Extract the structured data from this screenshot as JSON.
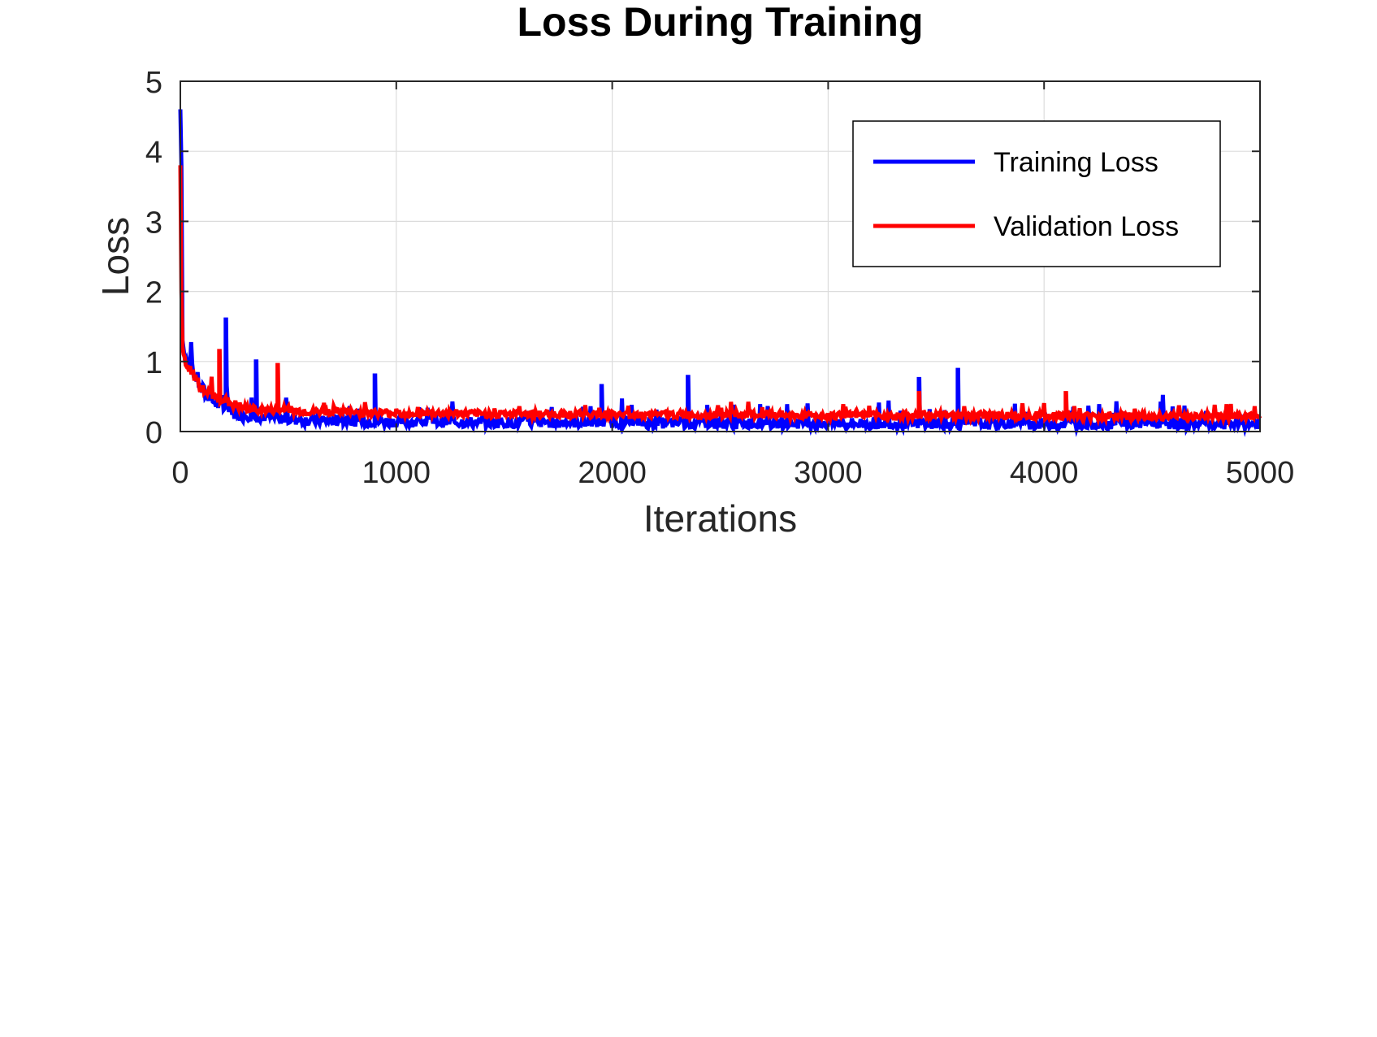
{
  "chart_data": {
    "type": "line",
    "title": "Loss During Training",
    "xlabel": "Iterations",
    "ylabel": "Loss",
    "xlim": [
      0,
      5000
    ],
    "ylim": [
      0,
      5
    ],
    "x_ticks": [
      0,
      1000,
      2000,
      3000,
      4000,
      5000
    ],
    "y_ticks": [
      0,
      1,
      2,
      3,
      4,
      5
    ],
    "grid": true,
    "legend_position": "top-right",
    "series": [
      {
        "name": "Training Loss",
        "color": "#0000ff",
        "x": [
          0,
          5,
          10,
          20,
          40,
          60,
          80,
          100,
          150,
          200,
          210,
          220,
          250,
          300,
          350,
          400,
          450,
          500,
          600,
          700,
          800,
          900,
          1000,
          1200,
          1400,
          1600,
          1800,
          1950,
          2000,
          2200,
          2350,
          2400,
          2600,
          2800,
          3000,
          3200,
          3400,
          3420,
          3500,
          3590,
          3600,
          3700,
          3800,
          4000,
          4200,
          4400,
          4600,
          4800,
          5000
        ],
        "values": [
          4.6,
          3.8,
          1.3,
          1.05,
          0.95,
          0.85,
          0.75,
          0.6,
          0.45,
          0.35,
          1.6,
          0.4,
          0.3,
          0.25,
          1.0,
          0.22,
          0.2,
          0.18,
          0.17,
          0.16,
          0.16,
          0.8,
          0.15,
          0.15,
          0.14,
          0.14,
          0.14,
          0.65,
          0.14,
          0.13,
          0.78,
          0.13,
          0.13,
          0.13,
          0.13,
          0.12,
          0.12,
          0.75,
          0.12,
          0.12,
          0.88,
          0.12,
          0.12,
          0.12,
          0.12,
          0.12,
          0.12,
          0.12,
          0.12
        ]
      },
      {
        "name": "Validation Loss",
        "color": "#ff0000",
        "x": [
          0,
          5,
          10,
          20,
          40,
          60,
          80,
          100,
          150,
          180,
          200,
          250,
          300,
          400,
          450,
          460,
          500,
          600,
          700,
          800,
          900,
          1000,
          1200,
          1400,
          1600,
          1800,
          2000,
          2200,
          2400,
          2600,
          2800,
          3000,
          3200,
          3400,
          3420,
          3600,
          3800,
          4000,
          4100,
          4200,
          4400,
          4600,
          4800,
          5000
        ],
        "values": [
          3.8,
          2.0,
          1.2,
          1.0,
          0.9,
          0.8,
          0.7,
          0.6,
          0.5,
          1.15,
          0.45,
          0.38,
          0.33,
          0.3,
          0.95,
          0.3,
          0.3,
          0.28,
          0.28,
          0.27,
          0.27,
          0.26,
          0.26,
          0.25,
          0.25,
          0.25,
          0.24,
          0.24,
          0.24,
          0.24,
          0.23,
          0.23,
          0.23,
          0.23,
          0.55,
          0.23,
          0.23,
          0.23,
          0.55,
          0.22,
          0.22,
          0.22,
          0.22,
          0.22
        ]
      }
    ]
  }
}
